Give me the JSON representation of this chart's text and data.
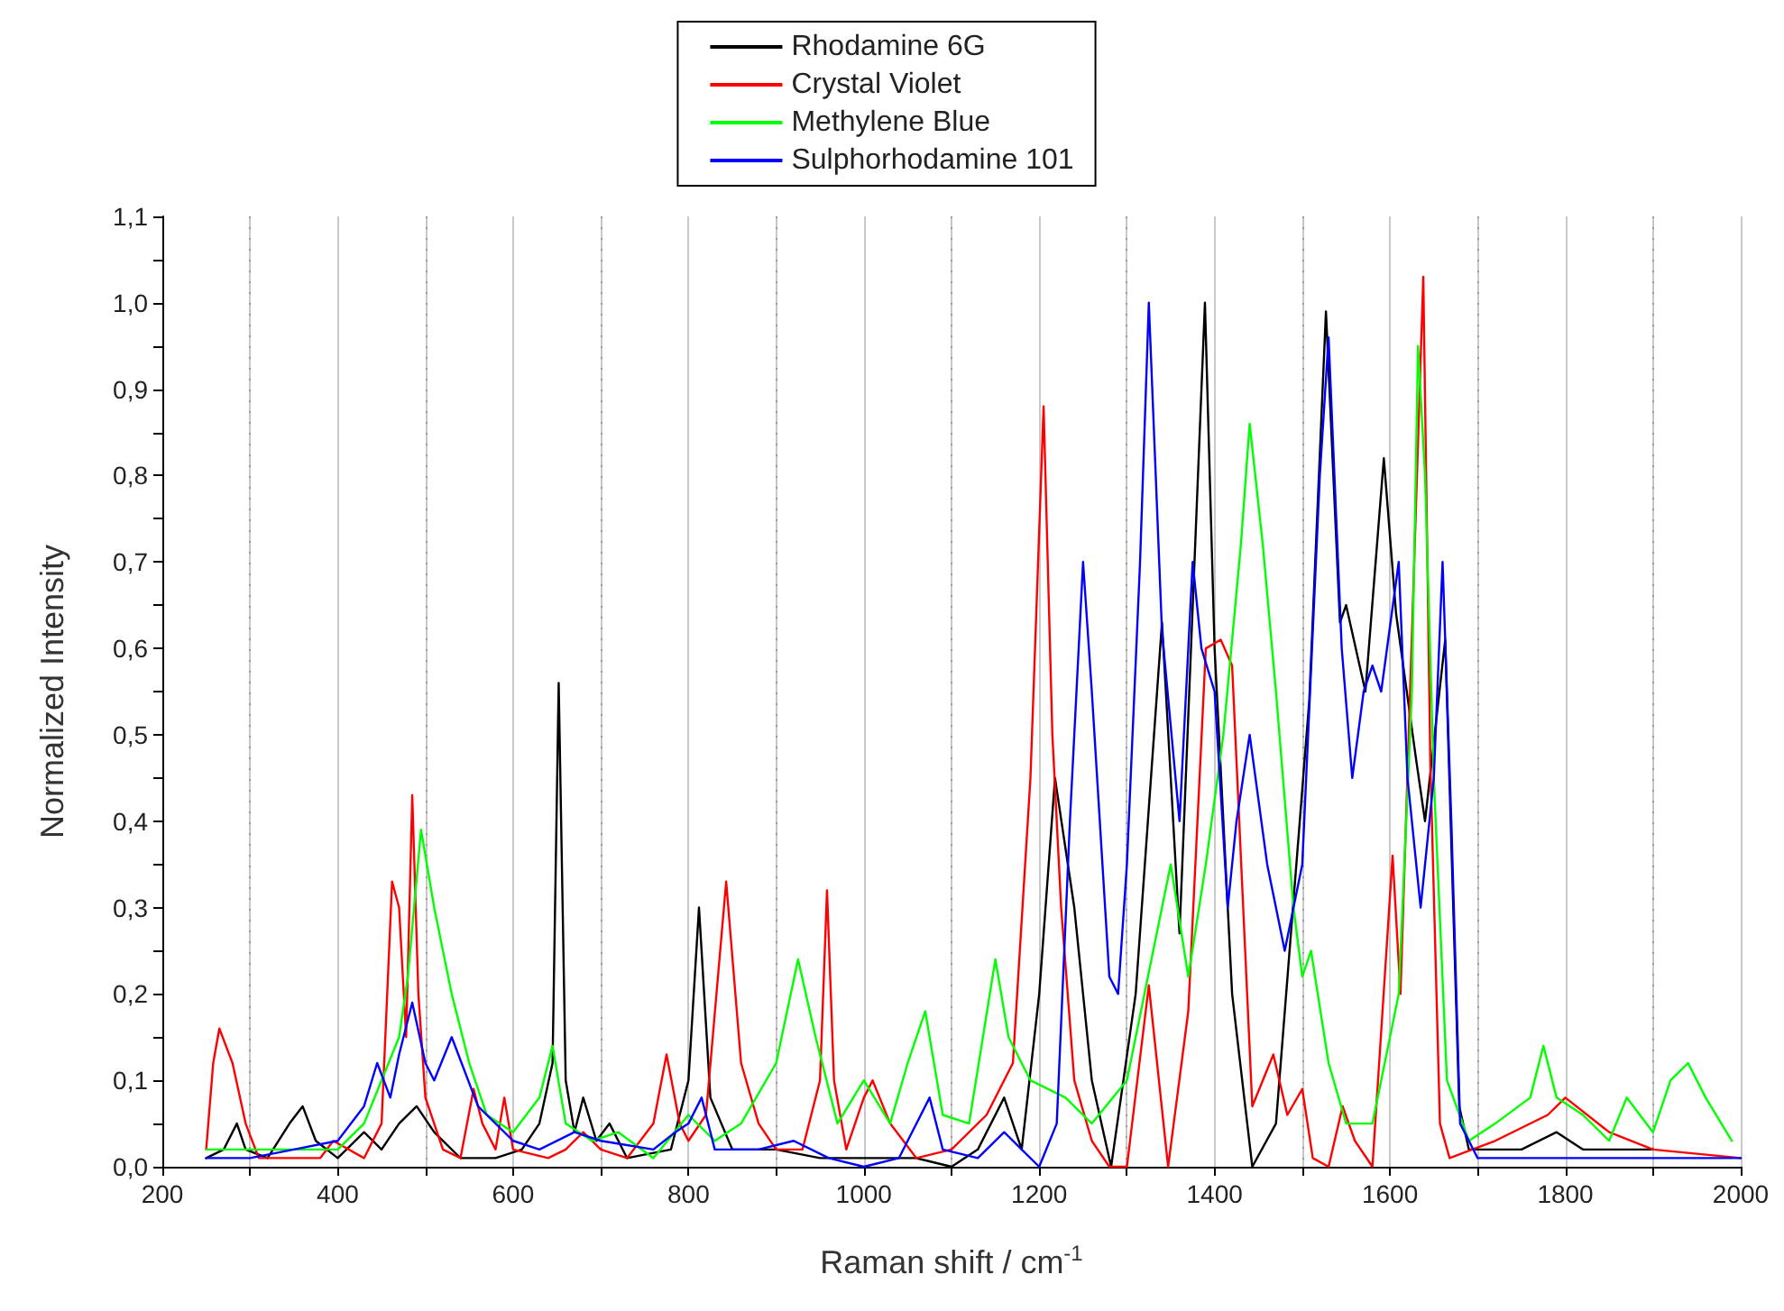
{
  "chart_data": {
    "type": "line",
    "xlabel": "Raman shift / cm$^{-1}$",
    "ylabel": "Normalized Intensity",
    "xlim": [
      200,
      2000
    ],
    "xticks": [
      200,
      {
        "value": 300,
        "label": null
      },
      400,
      {
        "value": 500,
        "label": null
      },
      600,
      {
        "value": 700,
        "label": null
      },
      800,
      {
        "value": 900,
        "label": null
      },
      1000,
      {
        "value": 1100,
        "label": null
      },
      1200,
      {
        "value": 1300,
        "label": null
      },
      1400,
      {
        "value": 1500,
        "label": null
      },
      1600,
      {
        "value": 1700,
        "label": null
      },
      1800,
      {
        "value": 1900,
        "label": null
      },
      2000
    ],
    "ylim": [
      0,
      1.1
    ],
    "yticks": [
      {
        "value": 0,
        "label": "0,0"
      },
      {
        "value": 0.05,
        "label": null
      },
      {
        "value": 0.1,
        "label": "0,1"
      },
      {
        "value": 0.15,
        "label": null
      },
      {
        "value": 0.2,
        "label": "0,2"
      },
      {
        "value": 0.25,
        "label": null
      },
      {
        "value": 0.3,
        "label": "0,3"
      },
      {
        "value": 0.35,
        "label": null
      },
      {
        "value": 0.4,
        "label": "0,4"
      },
      {
        "value": 0.45,
        "label": null
      },
      {
        "value": 0.5,
        "label": "0,5"
      },
      {
        "value": 0.55,
        "label": null
      },
      {
        "value": 0.6,
        "label": "0,6"
      },
      {
        "value": 0.65,
        "label": null
      },
      {
        "value": 0.7,
        "label": "0,7"
      },
      {
        "value": 0.75,
        "label": null
      },
      {
        "value": 0.8,
        "label": "0,8"
      },
      {
        "value": 0.85,
        "label": null
      },
      {
        "value": 0.9,
        "label": "0,9"
      },
      {
        "value": 0.95,
        "label": null
      },
      {
        "value": 1.0,
        "label": "1,0"
      },
      {
        "value": 1.05,
        "label": null
      },
      {
        "value": 1.1,
        "label": "1,1"
      }
    ],
    "grid": "x",
    "legend": "top",
    "marker": "none",
    "line_style": "solid",
    "series": [
      {
        "name": "Rhodamine 6G",
        "color": "#000000",
        "x": [
          250,
          270,
          285,
          295,
          320,
          345,
          360,
          375,
          400,
          430,
          450,
          470,
          490,
          510,
          540,
          580,
          610,
          630,
          645,
          652,
          660,
          670,
          680,
          695,
          710,
          730,
          780,
          800,
          812,
          825,
          850,
          900,
          950,
          1000,
          1060,
          1100,
          1130,
          1160,
          1180,
          1200,
          1218,
          1240,
          1260,
          1282,
          1310,
          1340,
          1360,
          1389,
          1400,
          1420,
          1443,
          1470,
          1508,
          1527,
          1543,
          1550,
          1572,
          1593,
          1607,
          1630,
          1640,
          1663,
          1679,
          1690,
          1750,
          1790,
          1820,
          1900
        ],
        "values": [
          0.01,
          0.02,
          0.05,
          0.02,
          0.01,
          0.05,
          0.07,
          0.03,
          0.01,
          0.04,
          0.02,
          0.05,
          0.07,
          0.04,
          0.01,
          0.01,
          0.02,
          0.05,
          0.12,
          0.56,
          0.1,
          0.04,
          0.08,
          0.03,
          0.05,
          0.01,
          0.02,
          0.1,
          0.3,
          0.08,
          0.02,
          0.02,
          0.01,
          0.01,
          0.01,
          0.0,
          0.02,
          0.08,
          0.02,
          0.2,
          0.45,
          0.3,
          0.1,
          0.0,
          0.2,
          0.63,
          0.27,
          1.0,
          0.6,
          0.2,
          0.0,
          0.05,
          0.54,
          0.99,
          0.63,
          0.65,
          0.55,
          0.82,
          0.64,
          0.47,
          0.4,
          0.61,
          0.07,
          0.02,
          0.02,
          0.04,
          0.02,
          0.02
        ]
      },
      {
        "name": "Crystal Violet",
        "color": "#ff0000",
        "x": [
          250,
          258,
          265,
          280,
          295,
          310,
          380,
          395,
          430,
          450,
          462,
          470,
          478,
          485,
          492,
          500,
          520,
          540,
          555,
          565,
          580,
          590,
          600,
          640,
          660,
          680,
          700,
          730,
          760,
          775,
          790,
          800,
          820,
          843,
          860,
          880,
          900,
          930,
          950,
          958,
          966,
          980,
          1000,
          1010,
          1030,
          1060,
          1100,
          1140,
          1170,
          1190,
          1205,
          1215,
          1225,
          1240,
          1260,
          1280,
          1300,
          1325,
          1347,
          1370,
          1390,
          1407,
          1420,
          1443,
          1467,
          1483,
          1500,
          1512,
          1530,
          1546,
          1560,
          1580,
          1603,
          1612,
          1638,
          1646,
          1657,
          1668,
          1720,
          1780,
          1800,
          1850,
          1900,
          2000
        ],
        "values": [
          0.02,
          0.12,
          0.16,
          0.12,
          0.05,
          0.01,
          0.01,
          0.03,
          0.01,
          0.05,
          0.33,
          0.3,
          0.15,
          0.43,
          0.2,
          0.08,
          0.02,
          0.01,
          0.09,
          0.05,
          0.02,
          0.08,
          0.02,
          0.01,
          0.02,
          0.04,
          0.02,
          0.01,
          0.05,
          0.13,
          0.05,
          0.03,
          0.06,
          0.33,
          0.12,
          0.05,
          0.02,
          0.02,
          0.1,
          0.32,
          0.1,
          0.02,
          0.08,
          0.1,
          0.05,
          0.01,
          0.02,
          0.06,
          0.12,
          0.45,
          0.88,
          0.5,
          0.3,
          0.1,
          0.03,
          0.0,
          0.0,
          0.21,
          0.0,
          0.18,
          0.6,
          0.61,
          0.58,
          0.07,
          0.13,
          0.06,
          0.09,
          0.01,
          0.0,
          0.07,
          0.03,
          0.0,
          0.36,
          0.2,
          1.03,
          0.47,
          0.05,
          0.01,
          0.03,
          0.06,
          0.08,
          0.04,
          0.02,
          0.01
        ]
      },
      {
        "name": "Methylene Blue",
        "color": "#00ff00",
        "x": [
          250,
          300,
          350,
          400,
          430,
          450,
          470,
          480,
          495,
          510,
          530,
          550,
          570,
          600,
          630,
          645,
          660,
          690,
          720,
          760,
          800,
          830,
          860,
          900,
          925,
          945,
          970,
          1000,
          1030,
          1050,
          1070,
          1090,
          1120,
          1150,
          1165,
          1190,
          1230,
          1260,
          1300,
          1330,
          1350,
          1370,
          1390,
          1410,
          1430,
          1440,
          1455,
          1470,
          1490,
          1500,
          1510,
          1530,
          1550,
          1580,
          1610,
          1625,
          1632,
          1640,
          1650,
          1665,
          1690,
          1720,
          1760,
          1775,
          1790,
          1820,
          1850,
          1870,
          1900,
          1920,
          1940,
          1960,
          1990
        ],
        "values": [
          0.02,
          0.02,
          0.02,
          0.02,
          0.05,
          0.1,
          0.15,
          0.22,
          0.39,
          0.3,
          0.2,
          0.12,
          0.06,
          0.04,
          0.08,
          0.14,
          0.05,
          0.03,
          0.04,
          0.01,
          0.06,
          0.03,
          0.05,
          0.12,
          0.24,
          0.15,
          0.05,
          0.1,
          0.05,
          0.12,
          0.18,
          0.06,
          0.05,
          0.24,
          0.15,
          0.1,
          0.08,
          0.05,
          0.1,
          0.25,
          0.35,
          0.22,
          0.35,
          0.5,
          0.72,
          0.86,
          0.72,
          0.55,
          0.3,
          0.22,
          0.25,
          0.12,
          0.05,
          0.05,
          0.2,
          0.55,
          0.95,
          0.8,
          0.45,
          0.1,
          0.03,
          0.05,
          0.08,
          0.14,
          0.08,
          0.06,
          0.03,
          0.08,
          0.04,
          0.1,
          0.12,
          0.08,
          0.03
        ]
      },
      {
        "name": "Sulphorhodamine 101",
        "color": "#0000ff",
        "x": [
          250,
          300,
          350,
          400,
          430,
          445,
          460,
          470,
          485,
          500,
          510,
          530,
          560,
          600,
          630,
          670,
          700,
          760,
          785,
          800,
          815,
          830,
          880,
          920,
          960,
          1000,
          1040,
          1075,
          1090,
          1130,
          1160,
          1180,
          1200,
          1220,
          1235,
          1250,
          1260,
          1280,
          1290,
          1300,
          1315,
          1325,
          1340,
          1360,
          1375,
          1385,
          1400,
          1415,
          1425,
          1440,
          1460,
          1480,
          1500,
          1520,
          1530,
          1545,
          1557,
          1570,
          1580,
          1590,
          1610,
          1620,
          1635,
          1650,
          1660,
          1670,
          1680,
          1700,
          2000
        ],
        "values": [
          0.01,
          0.01,
          0.02,
          0.03,
          0.07,
          0.12,
          0.08,
          0.13,
          0.19,
          0.12,
          0.1,
          0.15,
          0.07,
          0.03,
          0.02,
          0.04,
          0.03,
          0.02,
          0.04,
          0.05,
          0.08,
          0.02,
          0.02,
          0.03,
          0.01,
          0.0,
          0.01,
          0.08,
          0.02,
          0.01,
          0.04,
          0.02,
          0.0,
          0.05,
          0.4,
          0.7,
          0.55,
          0.22,
          0.2,
          0.35,
          0.7,
          1.0,
          0.62,
          0.4,
          0.7,
          0.6,
          0.55,
          0.3,
          0.4,
          0.5,
          0.35,
          0.25,
          0.35,
          0.8,
          0.96,
          0.6,
          0.45,
          0.55,
          0.58,
          0.55,
          0.7,
          0.45,
          0.3,
          0.45,
          0.7,
          0.4,
          0.05,
          0.01,
          0.01
        ]
      }
    ]
  }
}
